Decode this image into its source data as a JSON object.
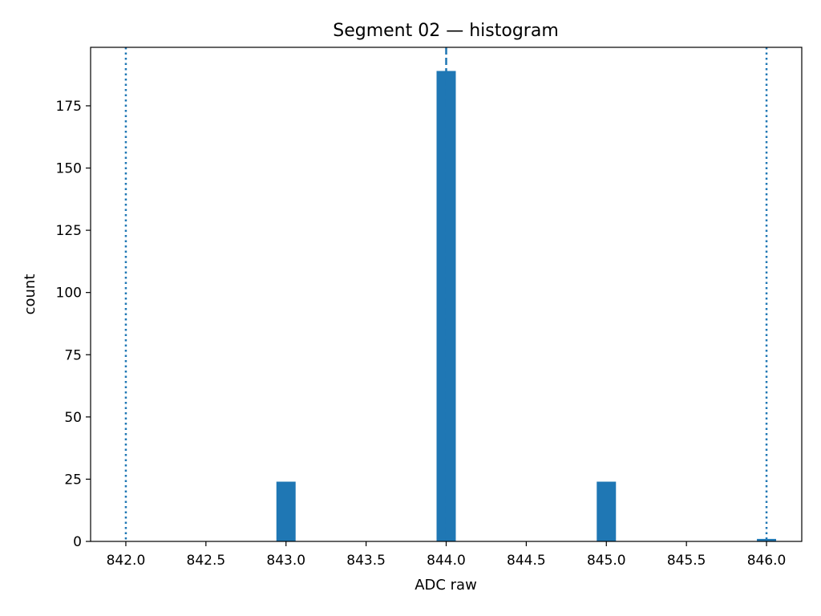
{
  "chart_data": {
    "type": "bar",
    "title": "Segment 02 — histogram",
    "xlabel": "ADC raw",
    "ylabel": "count",
    "xlim": [
      841.78,
      846.22
    ],
    "ylim": [
      0,
      198.5
    ],
    "grid": false,
    "legend": "none",
    "bar_color": "#1f77b4",
    "line_color": "#1f77b4",
    "bin_width": 0.12,
    "bins": [
      {
        "x": 843.0,
        "count": 24
      },
      {
        "x": 844.0,
        "count": 189
      },
      {
        "x": 845.0,
        "count": 24
      },
      {
        "x": 846.0,
        "count": 1
      }
    ],
    "reference_lines": [
      {
        "x": 842.0,
        "style": "dotted"
      },
      {
        "x": 844.0,
        "style": "dashed"
      },
      {
        "x": 846.0,
        "style": "dotted"
      }
    ],
    "x_ticks": [
      {
        "value": 842.0,
        "label": "842.0"
      },
      {
        "value": 842.5,
        "label": "842.5"
      },
      {
        "value": 843.0,
        "label": "843.0"
      },
      {
        "value": 843.5,
        "label": "843.5"
      },
      {
        "value": 844.0,
        "label": "844.0"
      },
      {
        "value": 844.5,
        "label": "844.5"
      },
      {
        "value": 845.0,
        "label": "845.0"
      },
      {
        "value": 845.5,
        "label": "845.5"
      },
      {
        "value": 846.0,
        "label": "846.0"
      }
    ],
    "y_ticks": [
      {
        "value": 0,
        "label": "0"
      },
      {
        "value": 25,
        "label": "25"
      },
      {
        "value": 50,
        "label": "50"
      },
      {
        "value": 75,
        "label": "75"
      },
      {
        "value": 100,
        "label": "100"
      },
      {
        "value": 125,
        "label": "125"
      },
      {
        "value": 150,
        "label": "150"
      },
      {
        "value": 175,
        "label": "175"
      }
    ]
  }
}
